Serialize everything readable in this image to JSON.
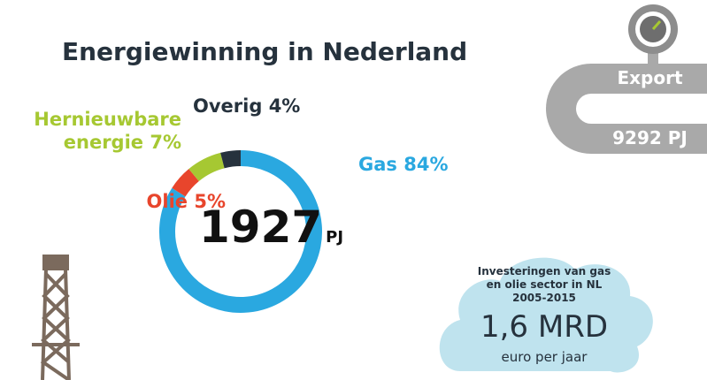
{
  "chart_data": {
    "type": "donut",
    "title": "Energiewinning in Nederland",
    "categories": [
      "Gas",
      "Olie",
      "Hernieuwbare energie",
      "Overig"
    ],
    "values": [
      84,
      5,
      7,
      4
    ],
    "value_labels": [
      "84%",
      "5%",
      "7%",
      "4%"
    ],
    "colors": [
      "#2aa8e0",
      "#e8452c",
      "#a6c832",
      "#26323d"
    ],
    "center_value": "1927",
    "center_unit": "PJ"
  },
  "export": {
    "label": "Export",
    "value": "9292 PJ"
  },
  "investment": {
    "text": "Investeringen van gas en olie sector in NL 2005-2015",
    "value": "1,6 MRD",
    "unit": "euro per jaar"
  }
}
